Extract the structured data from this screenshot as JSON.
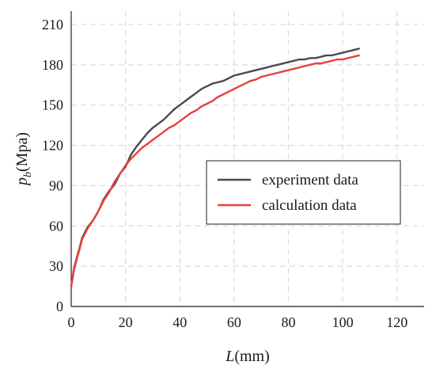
{
  "chart_data": {
    "type": "line",
    "title": "",
    "xlabel": {
      "symbol": "L",
      "unit": "(mm)"
    },
    "ylabel": {
      "symbol": "p",
      "subscript": "b",
      "unit": "(Mpa)"
    },
    "xlim": [
      0,
      130
    ],
    "ylim": [
      0,
      220
    ],
    "xticks": [
      0,
      20,
      40,
      60,
      80,
      100,
      120
    ],
    "yticks": [
      0,
      30,
      60,
      90,
      120,
      150,
      180,
      210
    ],
    "xtick_labels": [
      "0",
      "20",
      "40",
      "60",
      "80",
      "100",
      "120"
    ],
    "ytick_labels": [
      "0",
      "30",
      "60",
      "90",
      "120",
      "150",
      "180",
      "210"
    ],
    "grid": true,
    "legend_position": "center-right",
    "series": [
      {
        "name": "experiment data",
        "color": "#4a4a4a",
        "x": [
          0,
          1,
          2,
          3,
          4,
          6,
          8,
          10,
          12,
          14,
          16,
          18,
          20,
          22,
          24,
          26,
          28,
          30,
          32,
          34,
          36,
          38,
          40,
          42,
          44,
          46,
          48,
          50,
          52,
          54,
          56,
          58,
          60,
          62,
          64,
          66,
          68,
          70,
          72,
          74,
          76,
          78,
          80,
          82,
          84,
          86,
          88,
          90,
          92,
          94,
          96,
          98,
          100,
          102,
          104,
          106
        ],
        "y": [
          15,
          28,
          36,
          43,
          51,
          59,
          64,
          71,
          80,
          86,
          91,
          99,
          104,
          113,
          119,
          124,
          129,
          133,
          136,
          139,
          143,
          147,
          150,
          153,
          156,
          159,
          162,
          164,
          166,
          167,
          168,
          170,
          172,
          173,
          174,
          175,
          176,
          177,
          178,
          179,
          180,
          181,
          182,
          183,
          184,
          184,
          185,
          185,
          186,
          187,
          187,
          188,
          189,
          190,
          191,
          192
        ]
      },
      {
        "name": "calculation data",
        "color": "#e8413e",
        "x": [
          0,
          1,
          2,
          3,
          4,
          6,
          8,
          10,
          12,
          14,
          16,
          18,
          20,
          22,
          24,
          26,
          28,
          30,
          32,
          34,
          36,
          38,
          40,
          42,
          44,
          46,
          48,
          50,
          52,
          54,
          56,
          58,
          60,
          62,
          64,
          66,
          68,
          70,
          72,
          74,
          76,
          78,
          80,
          82,
          84,
          86,
          88,
          90,
          92,
          94,
          96,
          98,
          100,
          102,
          104,
          106
        ],
        "y": [
          15,
          27,
          35,
          42,
          50,
          58,
          64,
          71,
          79,
          85,
          93,
          99,
          105,
          110,
          114,
          118,
          121,
          124,
          127,
          130,
          133,
          135,
          138,
          141,
          144,
          146,
          149,
          151,
          153,
          156,
          158,
          160,
          162,
          164,
          166,
          168,
          169,
          171,
          172,
          173,
          174,
          175,
          176,
          177,
          178,
          179,
          180,
          181,
          181,
          182,
          183,
          184,
          184,
          185,
          186,
          187
        ]
      }
    ]
  }
}
